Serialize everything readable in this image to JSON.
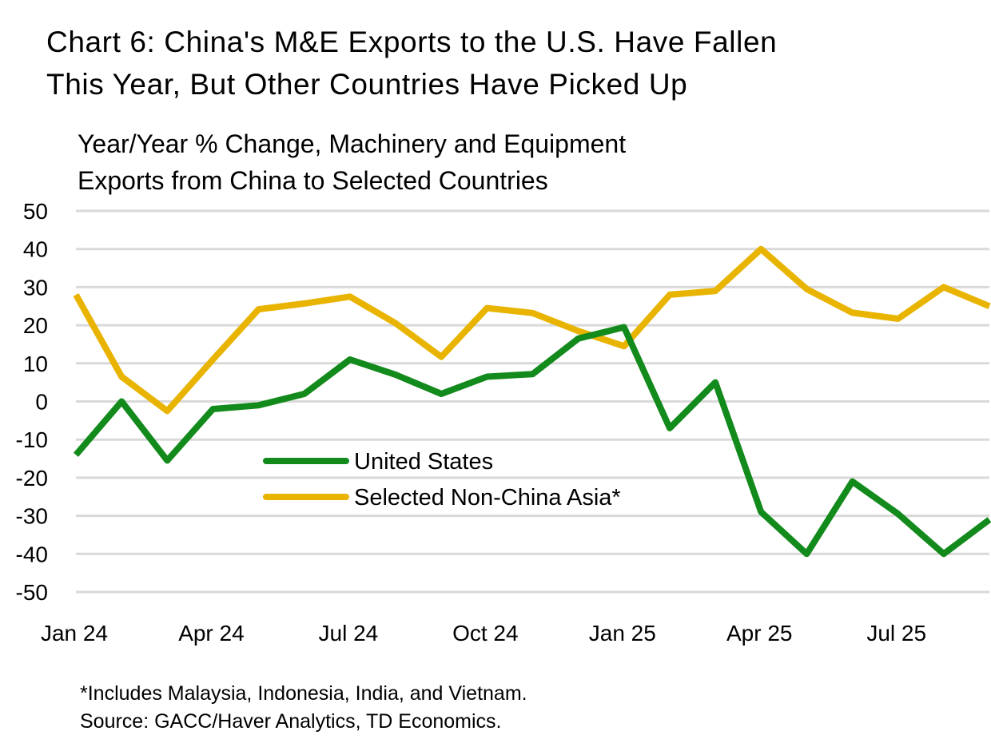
{
  "title": {
    "line1": "Chart 6: China's M&E Exports to the U.S. Have Fallen",
    "line2": "This Year, But Other Countries Have Picked Up"
  },
  "subtitle": {
    "line1": "Year/Year % Change, Machinery and Equipment",
    "line2": "Exports from China to Selected Countries"
  },
  "footnote": {
    "line1": "*Includes Malaysia, Indonesia, India, and Vietnam.",
    "line2": "Source: GACC/Haver Analytics, TD Economics."
  },
  "chart_data": {
    "type": "line",
    "x": [
      "Jan 24",
      "Feb 24",
      "Mar 24",
      "Apr 24",
      "May 24",
      "Jun 24",
      "Jul 24",
      "Aug 24",
      "Sep 24",
      "Oct 24",
      "Nov 24",
      "Dec 24",
      "Jan 25",
      "Feb 25",
      "Mar 25",
      "Apr 25",
      "May 25",
      "Jun 25",
      "Jul 25",
      "Aug 25",
      "Sep 25"
    ],
    "x_tick_labels": [
      "Jan 24",
      "Apr 24",
      "Jul 24",
      "Oct 24",
      "Jan 25",
      "Apr 25",
      "Jul 25"
    ],
    "x_tick_indices": [
      0,
      3,
      6,
      9,
      12,
      15,
      18
    ],
    "y_ticks": [
      50,
      40,
      30,
      20,
      10,
      0,
      -10,
      -20,
      -30,
      -40,
      -50
    ],
    "ylim": [
      -50,
      50
    ],
    "grid": true,
    "legend_position": "center",
    "series": [
      {
        "name": "United States",
        "color": "#138A1C",
        "values": [
          -14,
          0,
          -15.5,
          -2,
          -1,
          2,
          11,
          7,
          2,
          6.5,
          7.2,
          16.5,
          19.5,
          -7,
          5,
          -29,
          -40,
          -21,
          -29.5,
          -40,
          -31
        ]
      },
      {
        "name": "Selected Non-China Asia*",
        "color": "#E8B400",
        "values": [
          28,
          6.5,
          -2.5,
          11,
          24.2,
          25.7,
          27.5,
          20.5,
          11.7,
          24.5,
          23.2,
          18.5,
          14.5,
          28,
          29,
          40,
          29.5,
          23.3,
          21.7,
          30,
          25
        ]
      }
    ]
  }
}
